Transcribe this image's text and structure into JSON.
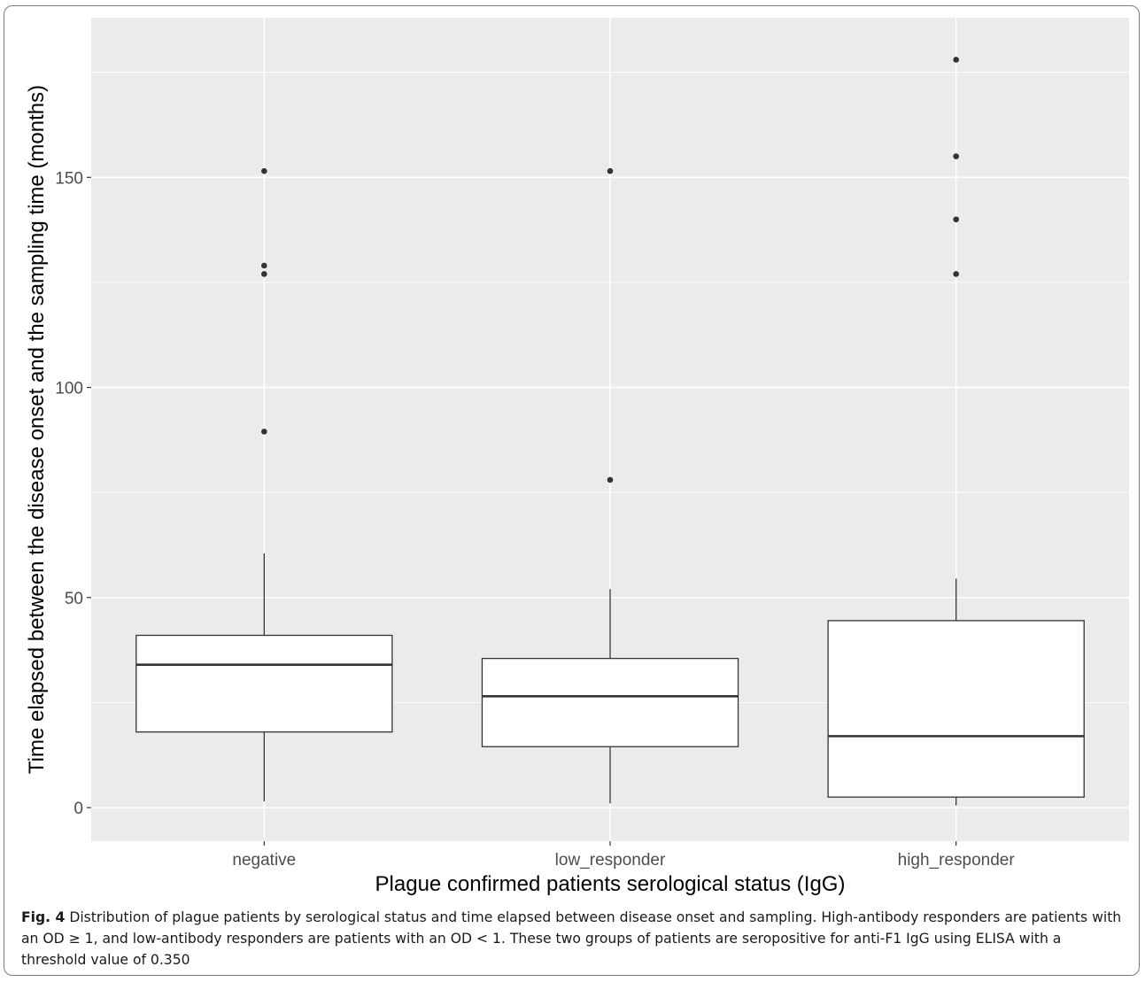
{
  "chart_data": {
    "type": "box",
    "xlabel": "Plague confirmed patients serological status (IgG)",
    "ylabel": "Time elapsed between the disease onset and the sampling time (months)",
    "ylim": [
      -8,
      188
    ],
    "y_ticks": [
      0,
      50,
      100,
      150
    ],
    "grid": true,
    "categories": [
      "negative",
      "low_responder",
      "high_responder"
    ],
    "boxes": [
      {
        "category": "negative",
        "whisker_low": 1.5,
        "q1": 18,
        "median": 34,
        "q3": 41,
        "whisker_high": 60.5,
        "outliers": [
          89.5,
          127,
          129,
          151.5
        ]
      },
      {
        "category": "low_responder",
        "whisker_low": 1,
        "q1": 14.5,
        "median": 26.5,
        "q3": 35.5,
        "whisker_high": 52,
        "outliers": [
          78,
          151.5
        ]
      },
      {
        "category": "high_responder",
        "whisker_low": 0.5,
        "q1": 2.5,
        "median": 17,
        "q3": 44.5,
        "whisker_high": 54.5,
        "outliers": [
          127,
          140,
          155,
          178
        ]
      }
    ]
  },
  "caption": {
    "label": "Fig. 4",
    "text": "Distribution of plague patients by serological status and time elapsed between disease onset and sampling. High-antibody responders are patients with an OD ≥ 1, and low-antibody responders are patients with an OD < 1. These two groups of patients are seropositive for anti-F1 IgG using ELISA with a threshold value of 0.350"
  }
}
